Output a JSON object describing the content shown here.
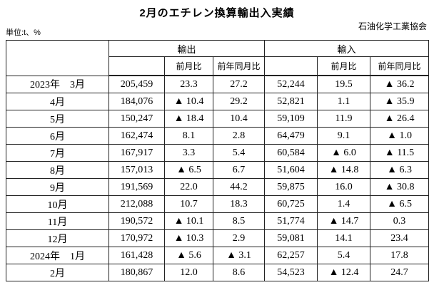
{
  "page": {
    "title": "2月のエチレン換算輸出入実績",
    "organization": "石油化学工業協会",
    "unit_note": "単位:t、%"
  },
  "table": {
    "export_group_label": "輸出",
    "import_group_label": "輸入",
    "mom_label": "前月比",
    "yoy_label": "前年同月比",
    "negative_mark": "▲",
    "rows": [
      {
        "period": "2023年　3月",
        "export": "205,459",
        "export_mom": "23.3",
        "export_yoy": "27.2",
        "import": "52,244",
        "import_mom": "19.5",
        "import_yoy": "▲ 36.2"
      },
      {
        "period": "4月",
        "export": "184,076",
        "export_mom": "▲ 10.4",
        "export_yoy": "29.2",
        "import": "52,821",
        "import_mom": "1.1",
        "import_yoy": "▲ 35.9"
      },
      {
        "period": "5月",
        "export": "150,247",
        "export_mom": "▲ 18.4",
        "export_yoy": "10.4",
        "import": "59,109",
        "import_mom": "11.9",
        "import_yoy": "▲ 26.4"
      },
      {
        "period": "6月",
        "export": "162,474",
        "export_mom": "8.1",
        "export_yoy": "2.8",
        "import": "64,479",
        "import_mom": "9.1",
        "import_yoy": "▲ 1.0"
      },
      {
        "period": "7月",
        "export": "167,917",
        "export_mom": "3.3",
        "export_yoy": "5.4",
        "import": "60,584",
        "import_mom": "▲ 6.0",
        "import_yoy": "▲ 11.5"
      },
      {
        "period": "8月",
        "export": "157,013",
        "export_mom": "▲ 6.5",
        "export_yoy": "6.7",
        "import": "51,604",
        "import_mom": "▲ 14.8",
        "import_yoy": "▲ 6.3"
      },
      {
        "period": "9月",
        "export": "191,569",
        "export_mom": "22.0",
        "export_yoy": "44.2",
        "import": "59,875",
        "import_mom": "16.0",
        "import_yoy": "▲ 30.8"
      },
      {
        "period": "10月",
        "export": "212,088",
        "export_mom": "10.7",
        "export_yoy": "18.3",
        "import": "60,725",
        "import_mom": "1.4",
        "import_yoy": "▲ 6.5"
      },
      {
        "period": "11月",
        "export": "190,572",
        "export_mom": "▲ 10.1",
        "export_yoy": "8.5",
        "import": "51,774",
        "import_mom": "▲ 14.7",
        "import_yoy": "0.3"
      },
      {
        "period": "12月",
        "export": "170,972",
        "export_mom": "▲ 10.3",
        "export_yoy": "2.9",
        "import": "59,081",
        "import_mom": "14.1",
        "import_yoy": "23.4"
      },
      {
        "period": "2024年　1月",
        "export": "161,428",
        "export_mom": "▲ 5.6",
        "export_yoy": "▲ 3.1",
        "import": "62,257",
        "import_mom": "5.4",
        "import_yoy": "17.8"
      },
      {
        "period": "2月",
        "export": "180,867",
        "export_mom": "12.0",
        "export_yoy": "8.6",
        "import": "54,523",
        "import_mom": "▲ 12.4",
        "import_yoy": "24.7"
      }
    ]
  }
}
